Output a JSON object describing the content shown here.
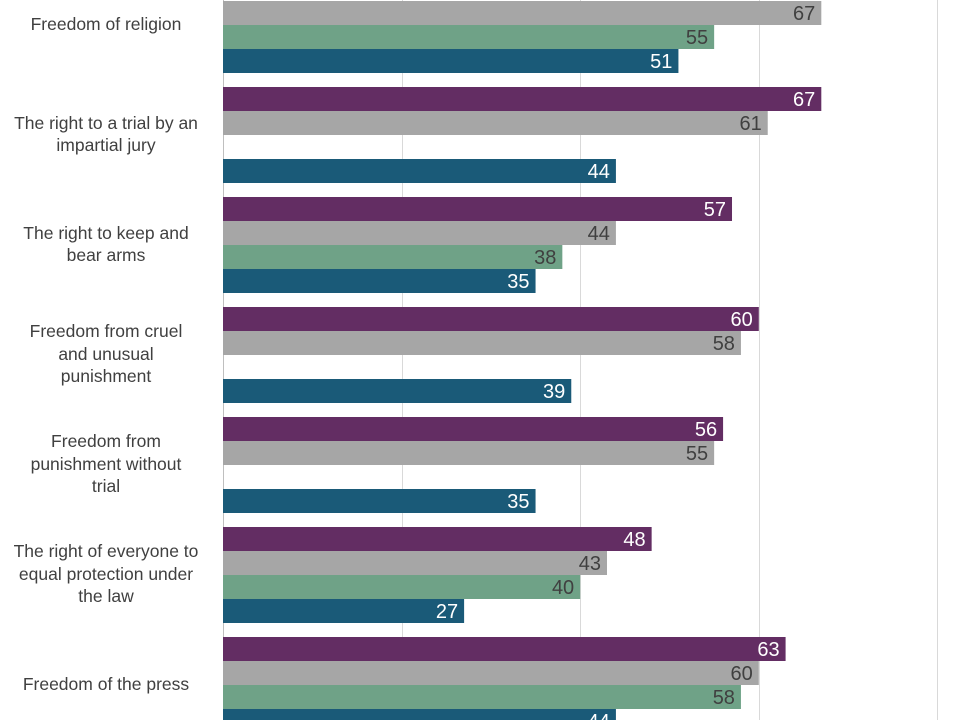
{
  "chart_data": {
    "type": "bar",
    "orientation": "horizontal",
    "categories": [
      "Freedom of religion",
      "The right to a trial by an impartial jury",
      "The right to keep and bear arms",
      "Freedom from cruel and unusual punishment",
      "Freedom from punishment without trial",
      "The right of everyone to equal protection under the law",
      "Freedom of the press"
    ],
    "category_label_lines": [
      [
        "Freedom of religion"
      ],
      [
        "The right to a trial by an",
        "impartial jury"
      ],
      [
        "The right to keep and",
        "bear arms"
      ],
      [
        "Freedom from cruel",
        "and unusual",
        "punishment"
      ],
      [
        "Freedom from",
        "punishment without",
        "trial"
      ],
      [
        "The right of everyone to",
        "equal protection under",
        "the law"
      ],
      [
        "Freedom of the press"
      ]
    ],
    "series": [
      {
        "values": [
          null,
          67,
          57,
          60,
          56,
          48,
          63
        ],
        "color": "#632d63",
        "label_color": "#ffffff"
      },
      {
        "values": [
          67,
          61,
          44,
          58,
          55,
          43,
          60
        ],
        "color": "#a6a6a6",
        "label_color": "#404040"
      },
      {
        "values": [
          55,
          null,
          38,
          null,
          null,
          40,
          58
        ],
        "color": "#6fa287",
        "label_color": "#404040"
      },
      {
        "values": [
          51,
          44,
          35,
          39,
          35,
          27,
          44
        ],
        "color": "#1a5a78",
        "label_color": "#ffffff"
      }
    ],
    "xlim": [
      0,
      100
    ],
    "grid": true
  }
}
